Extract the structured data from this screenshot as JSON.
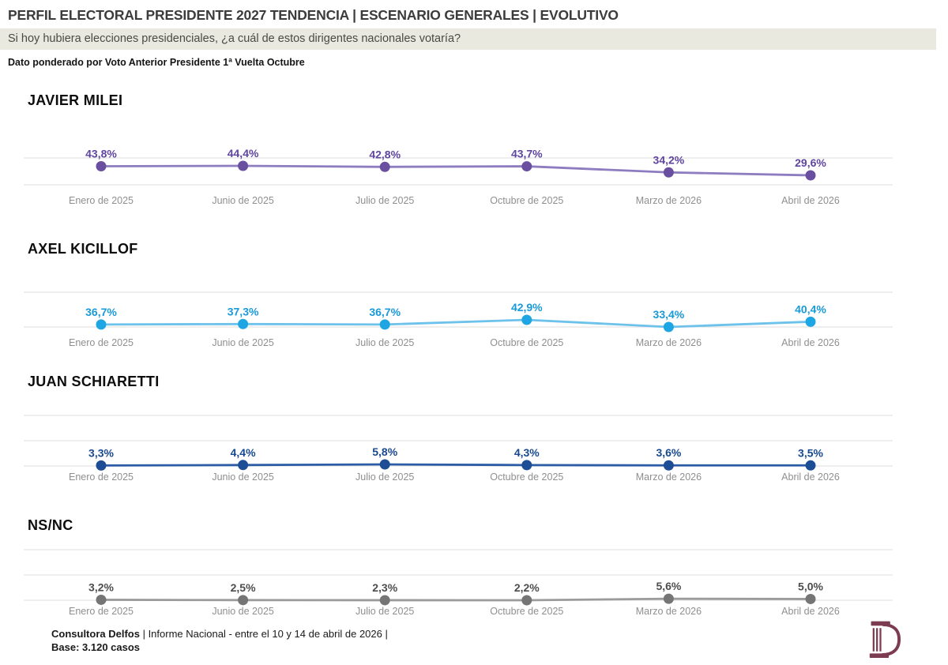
{
  "header": {
    "title": "PERFIL ELECTORAL PRESIDENTE 2027 TENDENCIA | ESCENARIO GENERALES | EVOLUTIVO",
    "question": "Si hoy hubiera elecciones presidenciales, ¿a cuál de estos dirigentes nacionales votaría?",
    "weight_note": "Dato ponderado por Voto Anterior Presidente 1ª Vuelta Octubre"
  },
  "chart_data": [
    {
      "type": "line",
      "title": "JAVIER MILEI",
      "categories": [
        "Enero de 2025",
        "Junio de 2025",
        "Julio de 2025",
        "Octubre de 2025",
        "Marzo de 2026",
        "Abril  de 2026"
      ],
      "values": [
        43.8,
        44.4,
        42.8,
        43.7,
        34.2,
        29.6
      ],
      "point_labels": [
        "43,8%",
        "44,4%",
        "42,8%",
        "43,7%",
        "34,2%",
        "29,6%"
      ],
      "unit": "%",
      "grid": true,
      "legend": "none",
      "colors": {
        "dot": "#6a4fa0",
        "line": "#8e7cc0",
        "label": "#5f45a0"
      }
    },
    {
      "type": "line",
      "title": "AXEL KICILLOF",
      "categories": [
        "Enero de 2025",
        "Junio de 2025",
        "Julio de 2025",
        "Octubre de 2025",
        "Marzo de 2026",
        "Abril  de 2026"
      ],
      "values": [
        36.7,
        37.3,
        36.7,
        42.9,
        33.4,
        40.4
      ],
      "point_labels": [
        "36,7%",
        "37,3%",
        "36,7%",
        "42,9%",
        "33,4%",
        "40,4%"
      ],
      "unit": "%",
      "grid": true,
      "legend": "none",
      "colors": {
        "dot": "#1ea6e4",
        "line": "#6cc2ea",
        "label": "#189ad8"
      }
    },
    {
      "type": "line",
      "title": "JUAN SCHIARETTI",
      "categories": [
        "Enero de 2025",
        "Junio de 2025",
        "Julio de 2025",
        "Octubre de 2025",
        "Marzo de 2026",
        "Abril  de 2026"
      ],
      "values": [
        3.3,
        4.4,
        5.8,
        4.3,
        3.6,
        3.5
      ],
      "point_labels": [
        "3,3%",
        "4,4%",
        "5,8%",
        "4,3%",
        "3,6%",
        "3,5%"
      ],
      "unit": "%",
      "grid": true,
      "legend": "none",
      "colors": {
        "dot": "#1d4e95",
        "line": "#2d5ca6",
        "label": "#17498f"
      }
    },
    {
      "type": "line",
      "title": "NS/NC",
      "categories": [
        "Enero de 2025",
        "Junio de 2025",
        "Julio de 2025",
        "Octubre de 2025",
        "Marzo de 2026",
        "Abril  de 2026"
      ],
      "values": [
        3.2,
        2.5,
        2.3,
        2.2,
        5.6,
        5.0
      ],
      "point_labels": [
        "3,2%",
        "2,5%",
        "2,3%",
        "2,2%",
        "5,6%",
        "5,0%"
      ],
      "unit": "%",
      "grid": true,
      "legend": "none",
      "colors": {
        "dot": "#757575",
        "line": "#9b9b9b",
        "label": "#4d4d4d"
      }
    }
  ],
  "axis": {
    "tick_color": "#8f8f8f",
    "grid_color": "#e3e3e3"
  },
  "footer": {
    "source_bold": "Consultora Delfos",
    "source_rest": " | Informe Nacional - entre el 10 y 14 de abril de 2026 |",
    "base": "Base: 3.120 casos",
    "logo_icon": "delfos-column-d-logo",
    "logo_color": "#7d3b52"
  },
  "theme": {
    "highlight_bar": "#e9e9df",
    "title_color": "#3c3c3c"
  }
}
